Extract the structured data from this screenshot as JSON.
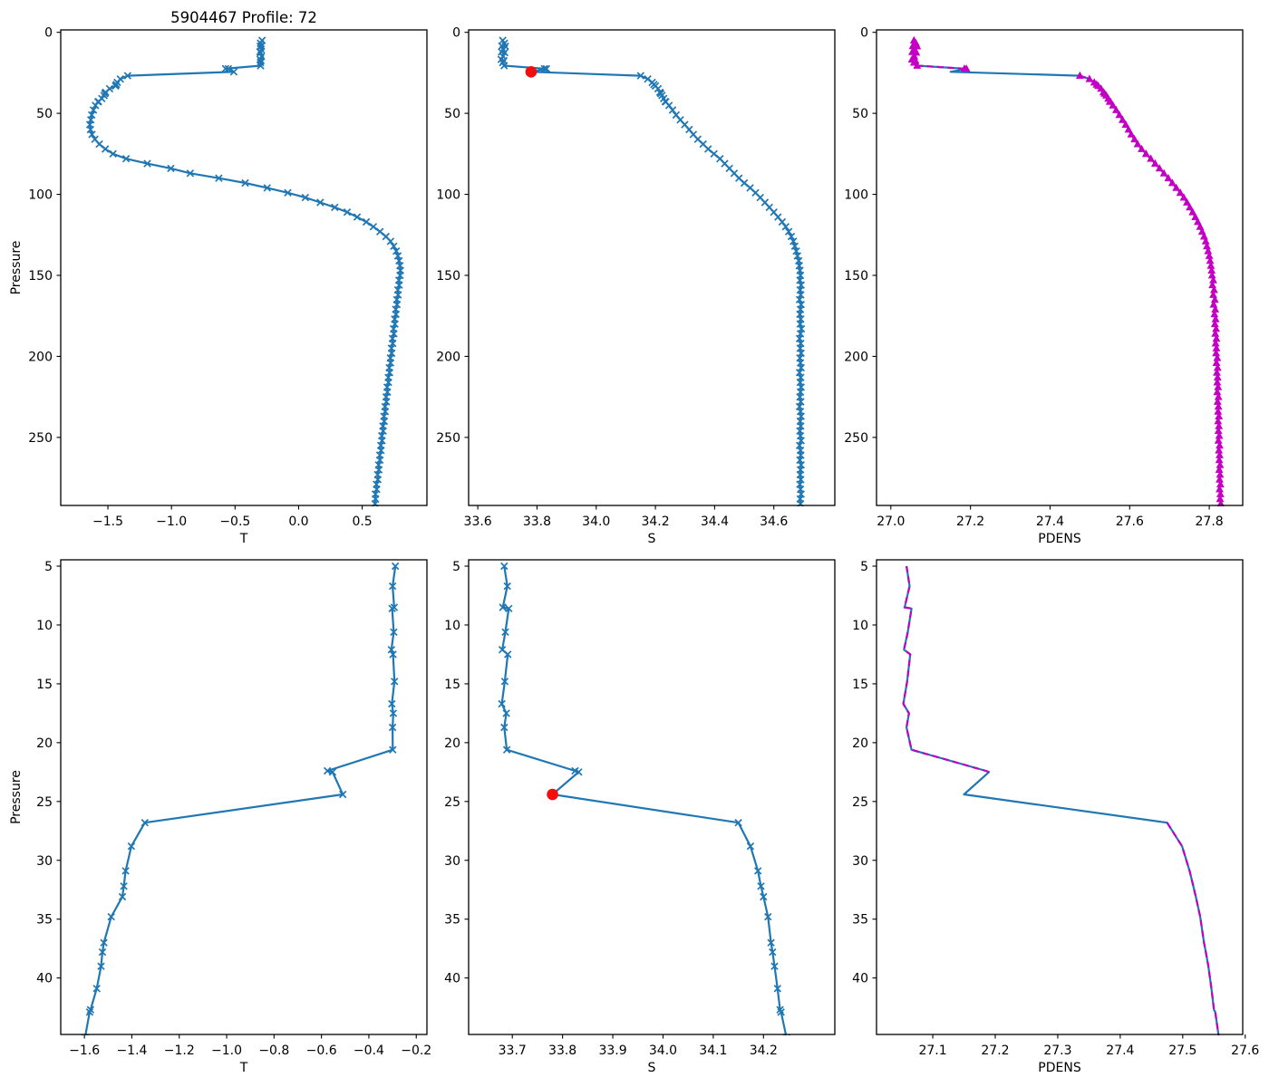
{
  "chart_data": {
    "type": "line",
    "figure_title": "5904467 Profile: 72",
    "colors": {
      "line": "#1f77b4",
      "magenta": "#c400c4",
      "red": "#f30d0d",
      "axis": "#000000"
    },
    "red_dot": {
      "value": 33.78,
      "pressure": 24.4
    },
    "qc_dash_pressure_segments": [
      [
        0,
        22.55
      ],
      [
        26.7,
        300
      ]
    ],
    "triangle_skip_pressures": [
      24.4
    ],
    "profiles": {
      "pressure": [
        5.0,
        6.7,
        8.5,
        8.6,
        10.6,
        12.1,
        12.5,
        14.8,
        16.7,
        17.5,
        18.7,
        20.6,
        22.4,
        22.5,
        24.4,
        26.8,
        28.8,
        30.9,
        32.2,
        33.1,
        34.8,
        37.0,
        37.8,
        39.0,
        40.9,
        42.7,
        42.9,
        45.1,
        48,
        51,
        54,
        57,
        60,
        63,
        66,
        69,
        72,
        75,
        78,
        81,
        84,
        87,
        90,
        93,
        96,
        99,
        102,
        105,
        108,
        111,
        114,
        117,
        120,
        123,
        126,
        129,
        132,
        135,
        138,
        141,
        144,
        147,
        150,
        153,
        156,
        159,
        162,
        165,
        168,
        171,
        174,
        177,
        180,
        183,
        186,
        189,
        192,
        195,
        198,
        201,
        204,
        207,
        210,
        213,
        216,
        219,
        222,
        225,
        228,
        231,
        234,
        237,
        240,
        243,
        246,
        249,
        252,
        255,
        258,
        261,
        264,
        267,
        270,
        273,
        276,
        279,
        282,
        285,
        288,
        291
      ],
      "T": [
        -0.288,
        -0.3,
        -0.293,
        -0.302,
        -0.295,
        -0.305,
        -0.298,
        -0.292,
        -0.303,
        -0.297,
        -0.3,
        -0.299,
        -0.575,
        -0.553,
        -0.51,
        -1.345,
        -1.402,
        -1.426,
        -1.434,
        -1.44,
        -1.487,
        -1.518,
        -1.524,
        -1.53,
        -1.548,
        -1.574,
        -1.578,
        -1.598,
        -1.614,
        -1.627,
        -1.634,
        -1.642,
        -1.637,
        -1.625,
        -1.602,
        -1.568,
        -1.52,
        -1.46,
        -1.357,
        -1.19,
        -1.005,
        -0.852,
        -0.628,
        -0.42,
        -0.247,
        -0.085,
        0.052,
        0.17,
        0.284,
        0.382,
        0.46,
        0.532,
        0.588,
        0.64,
        0.687,
        0.723,
        0.748,
        0.768,
        0.781,
        0.79,
        0.797,
        0.8,
        0.798,
        0.789,
        0.791,
        0.78,
        0.782,
        0.772,
        0.774,
        0.764,
        0.765,
        0.755,
        0.757,
        0.747,
        0.749,
        0.738,
        0.74,
        0.73,
        0.732,
        0.722,
        0.723,
        0.713,
        0.715,
        0.705,
        0.707,
        0.696,
        0.698,
        0.688,
        0.69,
        0.68,
        0.681,
        0.671,
        0.673,
        0.663,
        0.665,
        0.654,
        0.656,
        0.646,
        0.648,
        0.638,
        0.639,
        0.629,
        0.631,
        0.621,
        0.623,
        0.612,
        0.614,
        0.604,
        0.605,
        0.601
      ],
      "S": [
        33.684,
        33.69,
        33.681,
        33.693,
        33.686,
        33.68,
        33.691,
        33.685,
        33.679,
        33.688,
        33.684,
        33.689,
        33.825,
        33.832,
        33.78,
        34.15,
        34.174,
        34.189,
        34.195,
        34.2,
        34.209,
        34.215,
        34.218,
        34.222,
        34.228,
        34.233,
        34.235,
        34.246,
        34.258,
        34.27,
        34.284,
        34.299,
        34.314,
        34.328,
        34.343,
        34.361,
        34.378,
        34.398,
        34.418,
        34.434,
        34.45,
        34.466,
        34.482,
        34.5,
        34.52,
        34.538,
        34.554,
        34.57,
        34.585,
        34.6,
        34.614,
        34.628,
        34.64,
        34.65,
        34.659,
        34.666,
        34.671,
        34.676,
        34.68,
        34.684,
        34.686,
        34.688,
        34.69,
        34.688,
        34.692,
        34.689,
        34.691,
        34.687,
        34.692,
        34.69,
        34.688,
        34.691,
        34.689,
        34.693,
        34.69,
        34.687,
        34.691,
        34.689,
        34.692,
        34.688,
        34.69,
        34.692,
        34.687,
        34.691,
        34.689,
        34.692,
        34.69,
        34.688,
        34.691,
        34.687,
        34.69,
        34.692,
        34.689,
        34.691,
        34.688,
        34.69,
        34.692,
        34.687,
        34.69,
        34.691,
        34.688,
        34.692,
        34.69,
        34.689,
        34.691,
        34.688,
        34.69,
        34.692,
        34.689,
        34.69
      ],
      "PDENS": [
        27.058,
        27.063,
        27.055,
        27.066,
        27.06,
        27.054,
        27.064,
        27.059,
        27.053,
        27.062,
        27.058,
        27.066,
        27.185,
        27.19,
        27.15,
        27.475,
        27.499,
        27.511,
        27.517,
        27.521,
        27.528,
        27.534,
        27.537,
        27.541,
        27.546,
        27.55,
        27.552,
        27.558,
        27.566,
        27.574,
        27.582,
        27.59,
        27.597,
        27.604,
        27.612,
        27.62,
        27.63,
        27.641,
        27.653,
        27.664,
        27.675,
        27.686,
        27.697,
        27.707,
        27.717,
        27.727,
        27.736,
        27.744,
        27.751,
        27.758,
        27.765,
        27.771,
        27.777,
        27.782,
        27.787,
        27.791,
        27.794,
        27.797,
        27.8,
        27.802,
        27.804,
        27.806,
        27.807,
        27.81,
        27.808,
        27.812,
        27.81,
        27.814,
        27.811,
        27.815,
        27.813,
        27.816,
        27.814,
        27.817,
        27.815,
        27.818,
        27.816,
        27.818,
        27.817,
        27.82,
        27.818,
        27.821,
        27.819,
        27.821,
        27.82,
        27.822,
        27.82,
        27.823,
        27.821,
        27.823,
        27.822,
        27.824,
        27.822,
        27.824,
        27.823,
        27.825,
        27.823,
        27.826,
        27.824,
        27.826,
        27.825,
        27.827,
        27.825,
        27.827,
        27.826,
        27.828,
        27.826,
        27.828,
        27.827,
        27.829
      ]
    },
    "subplots": [
      {
        "key": "t-full",
        "row": 0,
        "col": 0,
        "var": "T",
        "style": "line_x",
        "red_dot": false,
        "title": "5904467 Profile: 72",
        "xlabel": "T",
        "ylabel": "Pressure",
        "xlim": [
          -1.871,
          1.009
        ],
        "ylim": [
          -1.5,
          292
        ],
        "p_max": 292,
        "xticks": [
          {
            "v": -1.5,
            "l": "−1.5"
          },
          {
            "v": -1.0,
            "l": "−1.0"
          },
          {
            "v": -0.5,
            "l": "−0.5"
          },
          {
            "v": 0.0,
            "l": "0.0"
          },
          {
            "v": 0.5,
            "l": "0.5"
          }
        ],
        "yticks": [
          {
            "v": 0,
            "l": "0"
          },
          {
            "v": 50,
            "l": "50"
          },
          {
            "v": 100,
            "l": "100"
          },
          {
            "v": 150,
            "l": "150"
          },
          {
            "v": 200,
            "l": "200"
          },
          {
            "v": 250,
            "l": "250"
          }
        ]
      },
      {
        "key": "s-full",
        "row": 0,
        "col": 1,
        "var": "S",
        "style": "line_x",
        "red_dot": true,
        "title": "",
        "xlabel": "S",
        "ylabel": null,
        "xlim": [
          33.569,
          34.806
        ],
        "ylim": [
          -1.5,
          292
        ],
        "p_max": 292,
        "xticks": [
          {
            "v": 33.6,
            "l": "33.6"
          },
          {
            "v": 33.8,
            "l": "33.8"
          },
          {
            "v": 34.0,
            "l": "34.0"
          },
          {
            "v": 34.2,
            "l": "34.2"
          },
          {
            "v": 34.4,
            "l": "34.4"
          },
          {
            "v": 34.6,
            "l": "34.6"
          }
        ],
        "yticks": [
          {
            "v": 0,
            "l": "0"
          },
          {
            "v": 50,
            "l": "50"
          },
          {
            "v": 100,
            "l": "100"
          },
          {
            "v": 150,
            "l": "150"
          },
          {
            "v": 200,
            "l": "200"
          },
          {
            "v": 250,
            "l": "250"
          }
        ]
      },
      {
        "key": "pdens-full",
        "row": 0,
        "col": 2,
        "var": "PDENS",
        "style": "pdens_tri",
        "red_dot": false,
        "title": "",
        "xlabel": "PDENS",
        "ylabel": null,
        "xlim": [
          26.964,
          27.884
        ],
        "ylim": [
          -1.5,
          292
        ],
        "p_max": 292,
        "xticks": [
          {
            "v": 27.0,
            "l": "27.0"
          },
          {
            "v": 27.2,
            "l": "27.2"
          },
          {
            "v": 27.4,
            "l": "27.4"
          },
          {
            "v": 27.6,
            "l": "27.6"
          },
          {
            "v": 27.8,
            "l": "27.8"
          }
        ],
        "yticks": [
          {
            "v": 0,
            "l": "0"
          },
          {
            "v": 50,
            "l": "50"
          },
          {
            "v": 100,
            "l": "100"
          },
          {
            "v": 150,
            "l": "150"
          },
          {
            "v": 200,
            "l": "200"
          },
          {
            "v": 250,
            "l": "250"
          }
        ]
      },
      {
        "key": "t-zoom",
        "row": 1,
        "col": 0,
        "var": "T",
        "style": "line_x",
        "red_dot": false,
        "title": "",
        "xlabel": "T",
        "ylabel": "Pressure",
        "xlim": [
          -1.7,
          -0.155
        ],
        "ylim": [
          4.46,
          44.8
        ],
        "p_max": 46,
        "xticks": [
          {
            "v": -1.6,
            "l": "−1.6"
          },
          {
            "v": -1.4,
            "l": "−1.4"
          },
          {
            "v": -1.2,
            "l": "−1.2"
          },
          {
            "v": -1.0,
            "l": "−1.0"
          },
          {
            "v": -0.8,
            "l": "−0.8"
          },
          {
            "v": -0.6,
            "l": "−0.6"
          },
          {
            "v": -0.4,
            "l": "−0.4"
          },
          {
            "v": -0.2,
            "l": "−0.2"
          }
        ],
        "yticks": [
          {
            "v": 5,
            "l": "5"
          },
          {
            "v": 10,
            "l": "10"
          },
          {
            "v": 15,
            "l": "15"
          },
          {
            "v": 20,
            "l": "20"
          },
          {
            "v": 25,
            "l": "25"
          },
          {
            "v": 30,
            "l": "30"
          },
          {
            "v": 35,
            "l": "35"
          },
          {
            "v": 40,
            "l": "40"
          }
        ]
      },
      {
        "key": "s-zoom",
        "row": 1,
        "col": 1,
        "var": "S",
        "style": "line_x",
        "red_dot": true,
        "title": "",
        "xlabel": "S",
        "ylabel": null,
        "xlim": [
          33.613,
          34.342
        ],
        "ylim": [
          4.46,
          44.8
        ],
        "p_max": 46,
        "xticks": [
          {
            "v": 33.7,
            "l": "33.7"
          },
          {
            "v": 33.8,
            "l": "33.8"
          },
          {
            "v": 33.9,
            "l": "33.9"
          },
          {
            "v": 34.0,
            "l": "34.0"
          },
          {
            "v": 34.1,
            "l": "34.1"
          },
          {
            "v": 34.2,
            "l": "34.2"
          }
        ],
        "yticks": [
          {
            "v": 5,
            "l": "5"
          },
          {
            "v": 10,
            "l": "10"
          },
          {
            "v": 15,
            "l": "15"
          },
          {
            "v": 20,
            "l": "20"
          },
          {
            "v": 25,
            "l": "25"
          },
          {
            "v": 30,
            "l": "30"
          },
          {
            "v": 35,
            "l": "35"
          },
          {
            "v": 40,
            "l": "40"
          }
        ]
      },
      {
        "key": "pdens-zoom",
        "row": 1,
        "col": 2,
        "var": "PDENS",
        "style": "pdens_dash",
        "red_dot": false,
        "title": "",
        "xlabel": "PDENS",
        "ylabel": null,
        "xlim": [
          27.01,
          27.596
        ],
        "ylim": [
          4.46,
          44.8
        ],
        "p_max": 46,
        "xticks": [
          {
            "v": 27.1,
            "l": "27.1"
          },
          {
            "v": 27.2,
            "l": "27.2"
          },
          {
            "v": 27.3,
            "l": "27.3"
          },
          {
            "v": 27.4,
            "l": "27.4"
          },
          {
            "v": 27.5,
            "l": "27.5"
          },
          {
            "v": 27.6,
            "l": "27.6"
          }
        ],
        "yticks": [
          {
            "v": 5,
            "l": "5"
          },
          {
            "v": 10,
            "l": "10"
          },
          {
            "v": 15,
            "l": "15"
          },
          {
            "v": 20,
            "l": "20"
          },
          {
            "v": 25,
            "l": "25"
          },
          {
            "v": 30,
            "l": "30"
          },
          {
            "v": 35,
            "l": "35"
          },
          {
            "v": 40,
            "l": "40"
          }
        ]
      }
    ]
  }
}
